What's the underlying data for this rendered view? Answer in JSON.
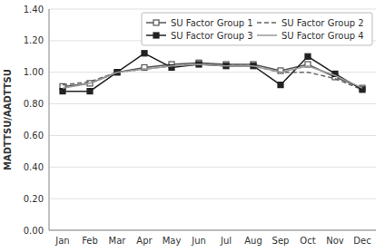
{
  "chart_data": {
    "type": "line",
    "y_label": "MADTTSU/AADTTSU",
    "categories": [
      "Jan",
      "Feb",
      "Mar",
      "Apr",
      "May",
      "Jun",
      "Jul",
      "Aug",
      "Sep",
      "Oct",
      "Nov",
      "Dec"
    ],
    "series": [
      {
        "name": "SU Factor Group 1",
        "color": "#555555",
        "marker": "open-square",
        "line_style": "solid",
        "values": [
          0.91,
          0.93,
          1.0,
          1.03,
          1.05,
          1.06,
          1.05,
          1.05,
          1.01,
          1.05,
          0.97,
          0.9
        ]
      },
      {
        "name": "SU Factor Group 2",
        "color": "#666666",
        "marker": "none",
        "line_style": "dashed",
        "values": [
          0.92,
          0.94,
          1.0,
          1.02,
          1.04,
          1.05,
          1.05,
          1.04,
          1.0,
          1.0,
          0.96,
          0.89
        ]
      },
      {
        "name": "SU Factor Group 3",
        "color": "#222222",
        "marker": "square",
        "line_style": "solid",
        "values": [
          0.88,
          0.88,
          1.0,
          1.12,
          1.03,
          1.05,
          1.04,
          1.04,
          0.92,
          1.1,
          0.99,
          0.89
        ]
      },
      {
        "name": "SU Factor Group 4",
        "color": "#999999",
        "marker": "none",
        "line_style": "solid",
        "values": [
          0.9,
          0.93,
          1.0,
          1.02,
          1.04,
          1.05,
          1.04,
          1.04,
          1.0,
          1.04,
          0.98,
          0.9
        ]
      }
    ],
    "ylim": [
      0.0,
      1.4
    ],
    "yticks": [
      {
        "value": 0.0,
        "label": "0.00"
      },
      {
        "value": 0.2,
        "label": "0.20"
      },
      {
        "value": 0.4,
        "label": "0.40"
      },
      {
        "value": 0.6,
        "label": "0.60"
      },
      {
        "value": 0.8,
        "label": "0.80"
      },
      {
        "value": 1.0,
        "label": "1.00"
      },
      {
        "value": 1.2,
        "label": "1.20"
      },
      {
        "value": 1.4,
        "label": "1.40"
      }
    ],
    "grid": true,
    "legend": "top-right"
  }
}
